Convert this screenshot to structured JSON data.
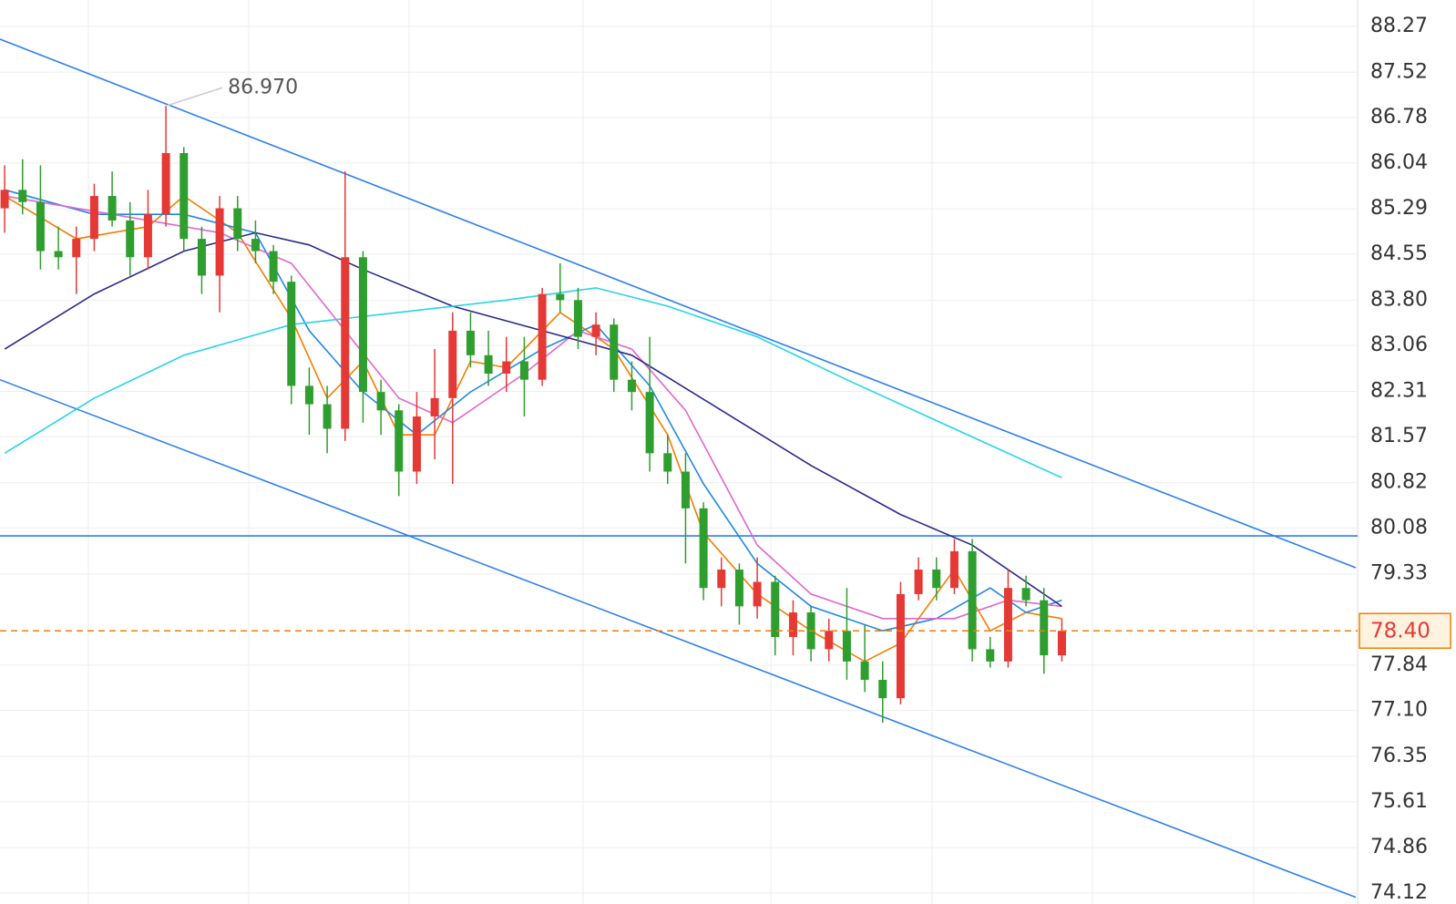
{
  "chart_data": {
    "type": "candlestick",
    "ylim": [
      73.94,
      88.7
    ],
    "xlim": [
      -0.26,
      75.4
    ],
    "yticks": [
      88.27,
      87.52,
      86.78,
      86.04,
      85.29,
      84.55,
      {
        "value": 83.8,
        "label": "83.80"
      },
      83.06,
      82.31,
      81.57,
      80.82,
      80.08,
      79.33,
      77.84,
      {
        "value": 77.1,
        "label": "77.10"
      },
      76.35,
      75.61,
      74.86,
      74.12
    ],
    "grid": true,
    "up_color": "#e53935",
    "down_color": "#2e9e2e",
    "open": [
      85.3,
      85.6,
      85.4,
      84.6,
      84.5,
      84.8,
      85.5,
      85.1,
      84.5,
      85.2,
      86.2,
      84.8,
      84.2,
      85.3,
      84.8,
      84.6,
      84.1,
      82.4,
      82.1,
      81.7,
      84.5,
      82.3,
      82.0,
      81.0,
      81.9,
      82.2,
      83.3,
      82.9,
      82.6,
      82.8,
      82.5,
      83.9,
      83.8,
      83.2,
      83.4,
      82.5,
      82.3,
      81.3,
      81.0,
      80.4,
      79.1,
      79.4,
      78.8,
      79.2,
      78.3,
      78.7,
      78.1,
      78.4,
      77.9,
      77.6,
      77.3,
      79.0,
      79.4,
      79.1,
      79.7,
      78.1,
      77.9,
      79.1,
      78.9,
      78.0
    ],
    "high": [
      86.0,
      86.1,
      86.0,
      85.0,
      85.0,
      85.7,
      85.9,
      85.4,
      85.6,
      86.97,
      86.3,
      85.0,
      85.5,
      85.5,
      85.1,
      84.7,
      84.2,
      82.7,
      82.4,
      85.9,
      84.6,
      82.5,
      82.1,
      82.3,
      83.0,
      83.6,
      83.6,
      83.3,
      83.2,
      83.2,
      84.0,
      84.4,
      84.0,
      83.6,
      83.5,
      82.8,
      83.2,
      81.6,
      81.3,
      80.5,
      79.6,
      79.5,
      79.6,
      79.3,
      78.9,
      78.8,
      78.6,
      79.1,
      78.5,
      77.9,
      79.2,
      79.6,
      79.6,
      79.9,
      79.9,
      78.3,
      79.4,
      79.3,
      79.1,
      78.6
    ],
    "low": [
      84.9,
      85.2,
      84.3,
      84.3,
      83.9,
      84.6,
      85.0,
      84.2,
      84.3,
      85.0,
      84.6,
      83.9,
      83.6,
      84.6,
      84.4,
      83.9,
      82.1,
      81.6,
      81.3,
      81.5,
      81.8,
      81.6,
      80.6,
      80.8,
      81.2,
      80.8,
      82.7,
      82.4,
      82.3,
      81.9,
      82.4,
      83.6,
      83.0,
      82.9,
      82.3,
      82.0,
      81.0,
      80.8,
      79.5,
      78.9,
      78.8,
      78.5,
      78.6,
      78.0,
      78.0,
      77.9,
      77.9,
      77.6,
      77.4,
      76.9,
      77.2,
      78.9,
      78.9,
      79.0,
      77.9,
      77.8,
      77.8,
      78.8,
      77.7,
      77.9
    ],
    "close": [
      85.6,
      85.4,
      84.6,
      84.5,
      84.8,
      85.5,
      85.1,
      84.5,
      85.2,
      86.2,
      84.8,
      84.2,
      85.3,
      84.8,
      84.6,
      84.1,
      82.4,
      82.1,
      81.7,
      84.5,
      82.3,
      82.0,
      81.0,
      81.9,
      82.2,
      83.3,
      82.9,
      82.6,
      82.8,
      82.5,
      83.9,
      83.8,
      83.2,
      83.4,
      82.5,
      82.3,
      81.3,
      81.0,
      80.4,
      79.1,
      79.4,
      78.8,
      79.2,
      78.3,
      78.7,
      78.1,
      78.4,
      77.9,
      77.6,
      77.3,
      79.0,
      79.4,
      79.1,
      79.7,
      78.1,
      77.9,
      79.1,
      78.9,
      78.0,
      78.4
    ],
    "moving_averages": [
      {
        "color": "#f57c00",
        "x": [
          0,
          4,
          8,
          10,
          13,
          16,
          18,
          20,
          22,
          24,
          26,
          28,
          31,
          34,
          37,
          39,
          42,
          45,
          48,
          50,
          53,
          55,
          57,
          59
        ],
        "values": [
          85.5,
          84.8,
          85.0,
          85.5,
          84.9,
          83.5,
          82.2,
          82.8,
          81.6,
          81.6,
          82.8,
          82.7,
          83.6,
          83.0,
          81.6,
          80.0,
          79.0,
          78.4,
          77.9,
          78.2,
          79.4,
          78.4,
          78.7,
          78.6
        ]
      },
      {
        "color": "#1e88e5",
        "x": [
          0,
          5,
          10,
          14,
          17,
          20,
          23,
          26,
          30,
          33,
          36,
          39,
          42,
          45,
          49,
          52,
          55,
          57,
          59
        ],
        "values": [
          85.6,
          85.2,
          85.2,
          84.9,
          83.3,
          82.3,
          81.6,
          82.3,
          83.0,
          83.4,
          82.4,
          80.8,
          79.5,
          78.8,
          78.4,
          78.6,
          79.1,
          78.7,
          78.9
        ]
      },
      {
        "color": "#e066cc",
        "x": [
          0,
          6,
          12,
          16,
          19,
          22,
          25,
          29,
          32,
          35,
          38,
          42,
          45,
          49,
          53,
          56,
          59
        ],
        "values": [
          85.5,
          85.2,
          84.9,
          84.4,
          83.3,
          82.2,
          81.8,
          82.6,
          83.3,
          83.0,
          82.0,
          79.8,
          79.0,
          78.6,
          78.6,
          78.9,
          78.8
        ]
      },
      {
        "color": "#2a2a8a",
        "x": [
          0,
          5,
          10,
          14,
          17,
          20,
          25,
          30,
          35,
          40,
          45,
          50,
          54,
          59
        ],
        "values": [
          83.0,
          83.9,
          84.6,
          84.9,
          84.7,
          84.3,
          83.7,
          83.3,
          82.9,
          82.0,
          81.1,
          80.3,
          79.8,
          78.8
        ]
      },
      {
        "color": "#26d4e8",
        "x": [
          0,
          5,
          10,
          16,
          22,
          28,
          33,
          37,
          42,
          47,
          53,
          59
        ],
        "values": [
          81.3,
          82.2,
          82.9,
          83.4,
          83.6,
          83.8,
          84.0,
          83.7,
          83.2,
          82.5,
          81.7,
          80.9
        ]
      }
    ],
    "trend_lines": [
      {
        "color": "#2f80ed",
        "x": [
          -0.26,
          75.4
        ],
        "values": [
          88.06,
          79.43
        ]
      },
      {
        "color": "#2f80ed",
        "x": [
          -0.26,
          75.4
        ],
        "values": [
          82.5,
          74.05
        ]
      }
    ],
    "horizontal_line": {
      "color": "#2f80ed",
      "value": 79.95
    },
    "last_price": {
      "value": 78.4,
      "label": "78.40",
      "color": "#f57c00"
    },
    "annotation": {
      "text": "86.970",
      "x": 9,
      "y": 86.97
    }
  }
}
